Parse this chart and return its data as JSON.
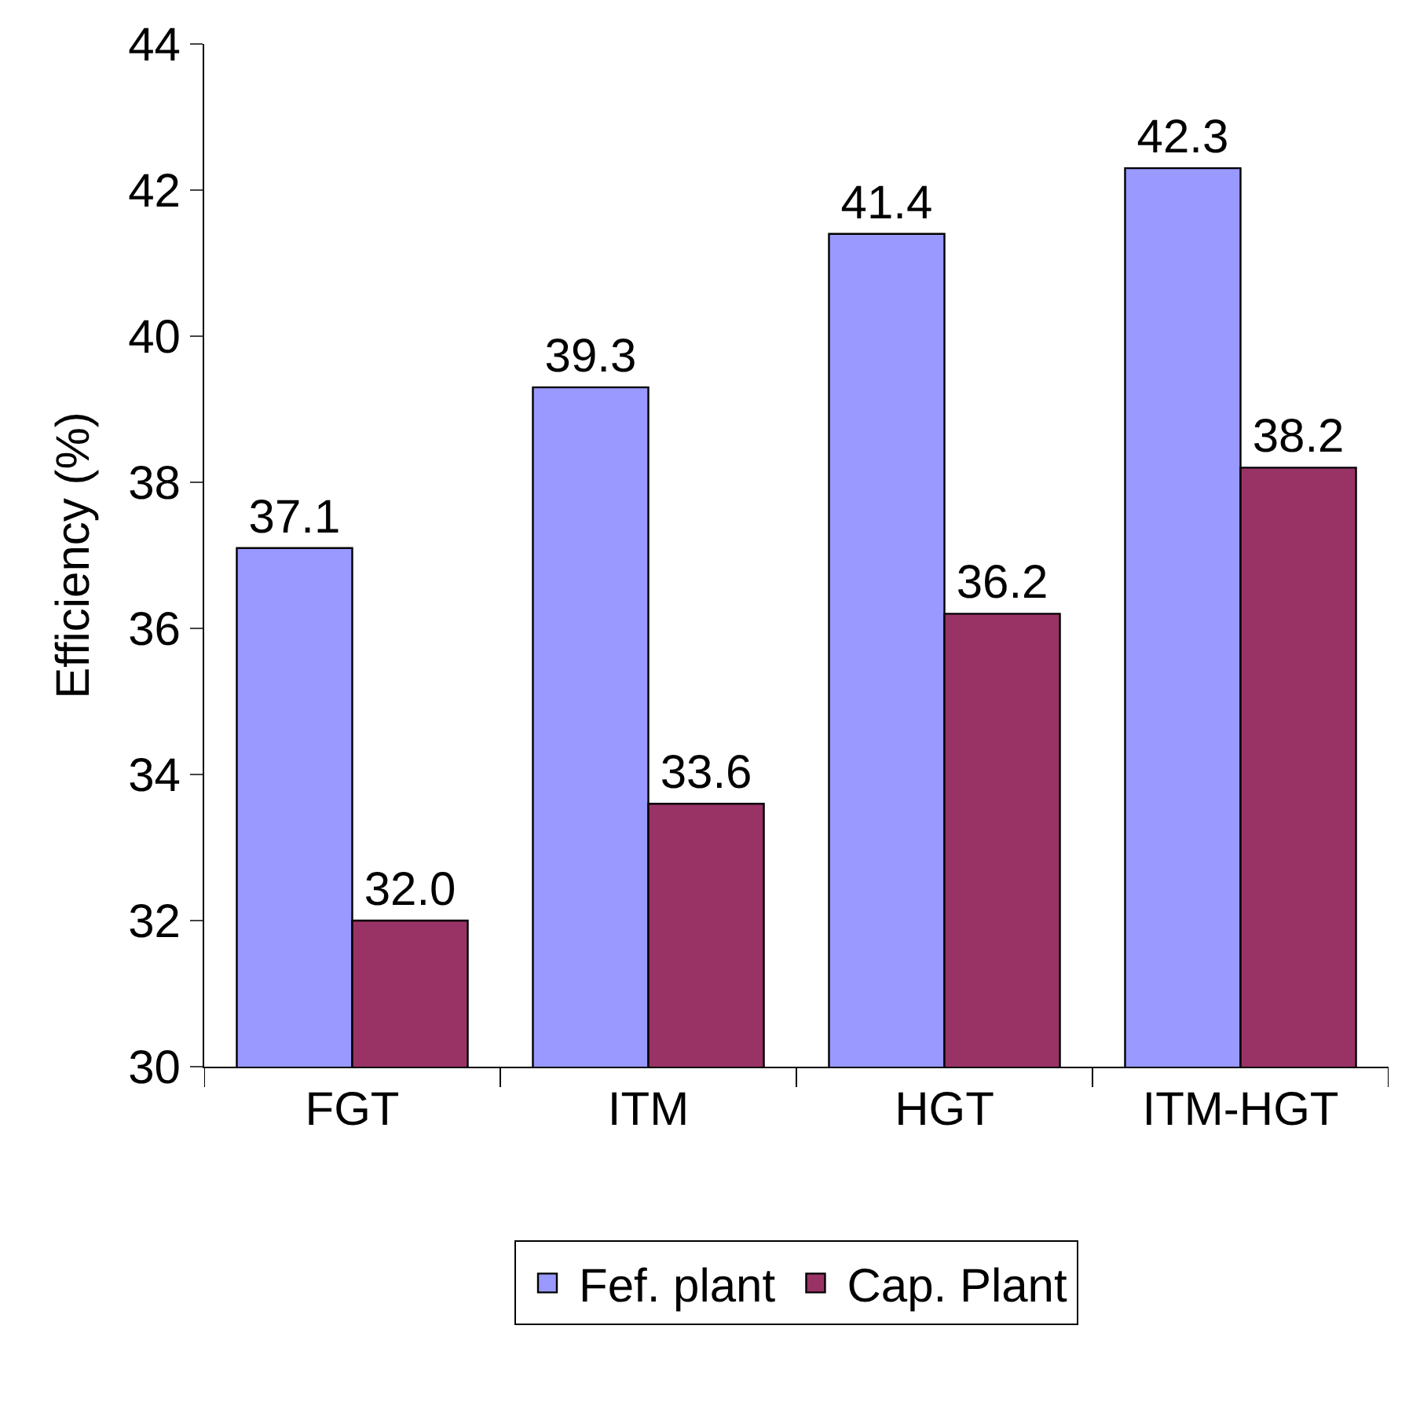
{
  "chart_data": {
    "type": "bar",
    "ylabel": "Efficiency (%)",
    "categories": [
      "FGT",
      "ITM",
      "HGT",
      "ITM-HGT"
    ],
    "series": [
      {
        "name": "Fef. plant",
        "color": "#9999ff",
        "values": [
          37.1,
          39.3,
          41.4,
          42.3
        ],
        "value_labels": [
          "37.1",
          "39.3",
          "41.4",
          "42.3"
        ]
      },
      {
        "name": "Cap. Plant",
        "color": "#993366",
        "values": [
          32.0,
          33.6,
          36.2,
          38.2
        ],
        "value_labels": [
          "32.0",
          "33.6",
          "36.2",
          "38.2"
        ]
      }
    ],
    "ylim": [
      30,
      44
    ],
    "yticks": [
      30,
      32,
      34,
      36,
      38,
      40,
      42,
      44
    ],
    "legend": "bottom"
  }
}
